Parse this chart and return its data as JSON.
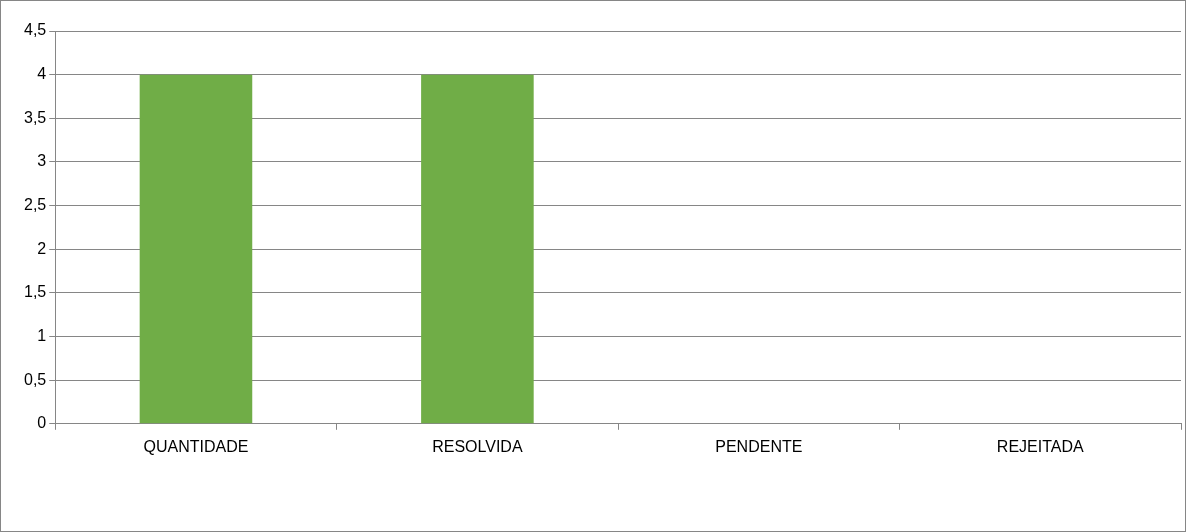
{
  "chart_data": {
    "type": "bar",
    "categories": [
      "QUANTIDADE",
      "RESOLVIDA",
      "PENDENTE",
      "REJEITADA"
    ],
    "values": [
      4,
      4,
      0,
      0
    ],
    "color": "#70ad47",
    "ylim": [
      0,
      4.5
    ],
    "yticks": [
      0,
      {
        "value": 0.5,
        "label": "0,5"
      },
      1,
      {
        "value": 1.5,
        "label": "1,5"
      },
      2,
      {
        "value": 2.5,
        "label": "2,5"
      },
      3,
      {
        "value": 3.5,
        "label": "3,5"
      },
      4,
      {
        "value": 4.5,
        "label": "4,5"
      }
    ],
    "grid": "y"
  }
}
